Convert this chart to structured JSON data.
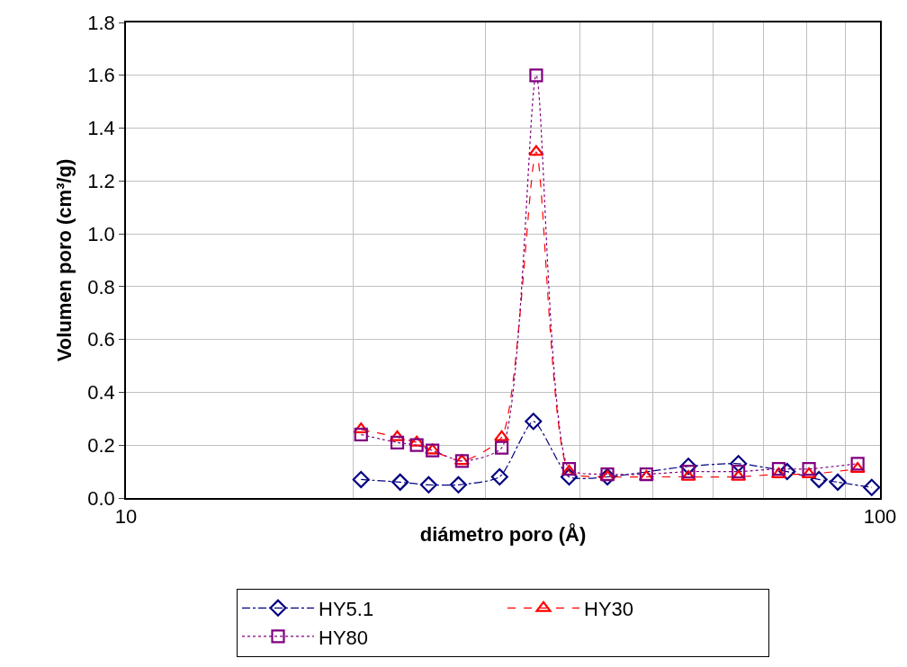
{
  "chart_data": {
    "type": "line",
    "xlabel": "diámetro poro (Å)",
    "ylabel": "Volumen poro (cm³/g)",
    "log": "x",
    "xlim": [
      10,
      100
    ],
    "xticks": [
      10,
      {
        "value": 20,
        "label": null
      },
      {
        "value": 30,
        "label": null
      },
      {
        "value": 40,
        "label": null
      },
      {
        "value": 50,
        "label": null
      },
      {
        "value": 60,
        "label": null
      },
      {
        "value": 70,
        "label": null
      },
      {
        "value": 80,
        "label": null
      },
      {
        "value": 90,
        "label": null
      },
      100
    ],
    "ylim": [
      0,
      1.8
    ],
    "yticks": [
      {
        "value": 0,
        "label": "0.0"
      },
      0.2,
      0.4,
      0.6,
      0.8,
      {
        "value": 1,
        "label": "1.0"
      },
      1.2,
      1.4,
      1.6,
      1.8
    ],
    "grid": true,
    "legend": "bottom",
    "series": [
      {
        "name": "HY5.1",
        "color": "#000080",
        "marker": "diamond",
        "line_style": "dashdot",
        "x": [
          20.5,
          23.1,
          25.2,
          27.6,
          31.3,
          34.7,
          38.7,
          43.5,
          49.0,
          55.7,
          64.9,
          75.3,
          83.0,
          87.9,
          97.5
        ],
        "values": [
          0.07,
          0.06,
          0.05,
          0.05,
          0.08,
          0.29,
          0.08,
          0.08,
          null,
          0.12,
          0.13,
          0.1,
          0.07,
          0.06,
          0.04
        ]
      },
      {
        "name": "HY30",
        "color": "#ff0000",
        "marker": "triangle",
        "line_style": "dashed",
        "x": [
          20.5,
          22.9,
          24.3,
          25.5,
          27.9,
          31.5,
          35.0,
          38.7,
          43.5,
          49.0,
          55.7,
          64.9,
          73.4,
          80.5,
          93.4
        ],
        "values": [
          0.26,
          0.23,
          0.21,
          0.18,
          0.14,
          0.23,
          1.31,
          0.1,
          0.08,
          0.08,
          0.08,
          0.08,
          0.09,
          0.09,
          0.11
        ]
      },
      {
        "name": "HY80",
        "color": "#800080",
        "marker": "square",
        "line_style": "dotted",
        "x": [
          20.5,
          22.9,
          24.3,
          25.5,
          27.9,
          31.5,
          35.0,
          38.7,
          43.5,
          49.0,
          55.7,
          64.9,
          73.4,
          80.5,
          93.4
        ],
        "values": [
          0.24,
          0.21,
          0.2,
          0.18,
          0.14,
          0.19,
          1.6,
          0.11,
          0.09,
          0.09,
          0.1,
          0.1,
          0.11,
          0.11,
          0.13
        ]
      }
    ]
  }
}
